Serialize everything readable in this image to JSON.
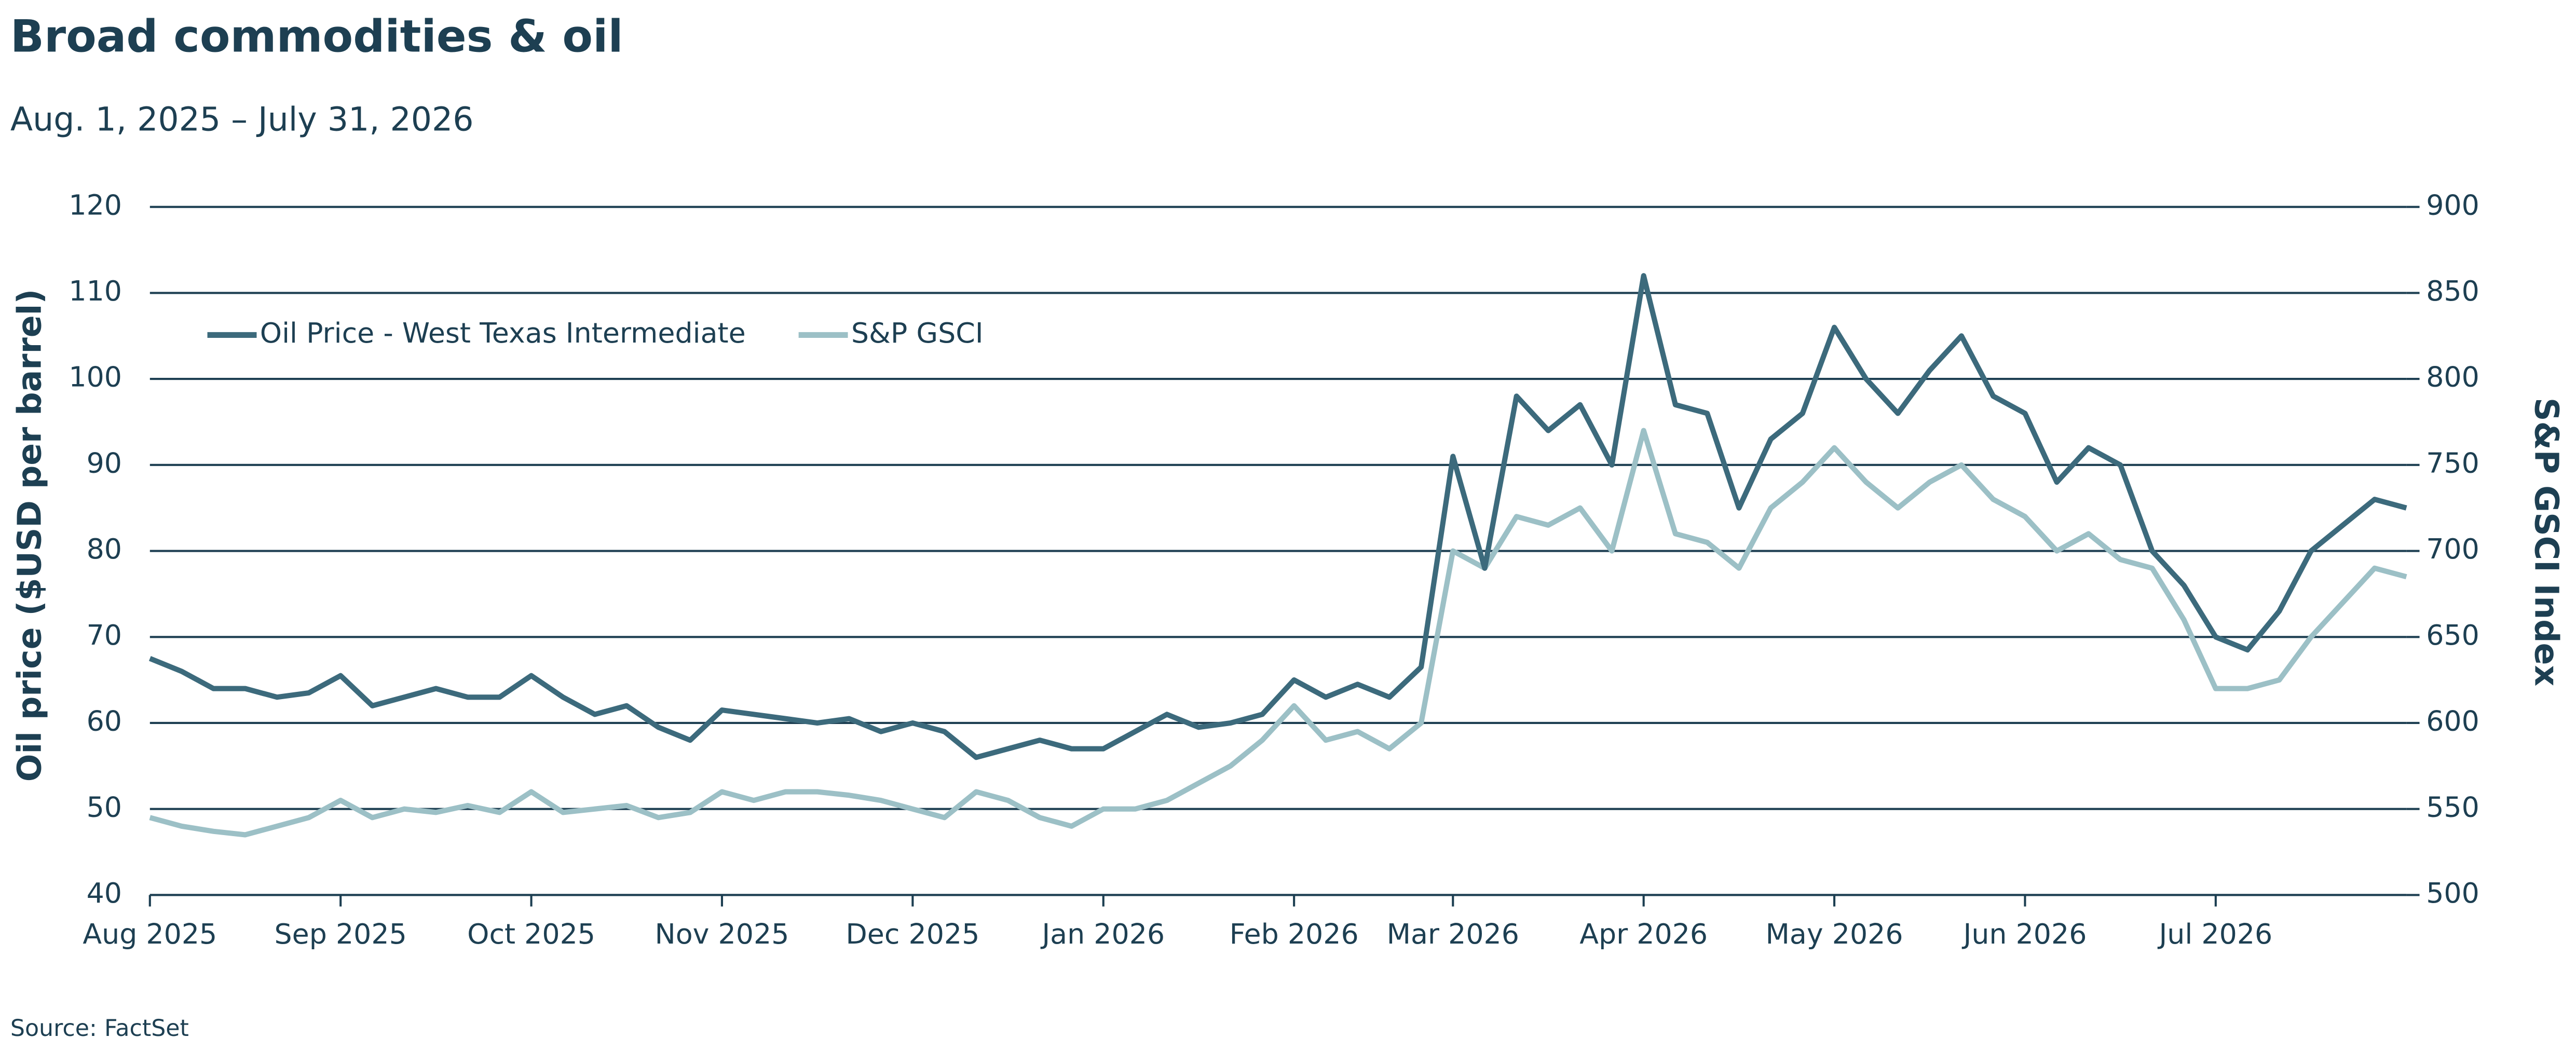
{
  "chart_data": {
    "type": "line",
    "title": "Broad commodities & oil",
    "subtitle": "Aug. 1, 2025 – July 31, 2026",
    "y_label": "Oil price ($USD per barrel)",
    "y2_label": "S&P GSCI Index",
    "source": "Source: FactSet",
    "legend": "upper left",
    "grid": true,
    "categories": [
      "Aug 2025",
      null,
      null,
      null,
      null,
      null,
      "Sep 2025",
      null,
      null,
      null,
      null,
      null,
      "Oct 2025",
      null,
      null,
      null,
      null,
      null,
      "Nov 2025",
      null,
      null,
      null,
      null,
      null,
      "Dec 2025",
      null,
      null,
      null,
      null,
      null,
      "Jan 2026",
      null,
      null,
      null,
      null,
      null,
      "Feb 2026",
      null,
      null,
      null,
      null,
      "Mar 2026",
      null,
      null,
      null,
      null,
      null,
      "Apr 2026",
      null,
      null,
      null,
      null,
      null,
      "May 2026",
      null,
      null,
      null,
      null,
      null,
      "Jun 2026",
      null,
      null,
      null,
      null,
      null,
      "Jul 2026",
      null,
      null,
      null,
      null,
      null,
      null
    ],
    "ylim": [
      40,
      120
    ],
    "yticks": [
      40,
      50,
      60,
      70,
      80,
      90,
      100,
      110,
      120
    ],
    "y2lim": [
      500,
      900
    ],
    "y2ticks": [
      500,
      550,
      600,
      650,
      700,
      750,
      800,
      850,
      900
    ],
    "series": [
      {
        "name": "Oil Price - West Texas Intermediate",
        "color": "#3c6a7c",
        "values": [
          67.5,
          66,
          64,
          64,
          63,
          63.5,
          65.5,
          62,
          63,
          64,
          63,
          63,
          65.5,
          63,
          61,
          62,
          59.5,
          58,
          61.5,
          61,
          60.5,
          60,
          60.5,
          59,
          60,
          59,
          56,
          57,
          58,
          57,
          57,
          59,
          61,
          59.5,
          60,
          61,
          65,
          63,
          64.5,
          63,
          66.5,
          91,
          78,
          98,
          94,
          97,
          90,
          112,
          97,
          96,
          85,
          93,
          96,
          106,
          100,
          96,
          101,
          105,
          98,
          96,
          88,
          92,
          90,
          80,
          76,
          70,
          68.5,
          73,
          80,
          83,
          86,
          85
        ]
      },
      {
        "name": "S&P GSCI",
        "color": "#9cc0c6",
        "axis": "y2",
        "values": [
          545,
          540,
          537,
          535,
          540,
          545,
          555,
          545,
          550,
          548,
          552,
          548,
          560,
          548,
          550,
          552,
          545,
          548,
          560,
          555,
          560,
          560,
          558,
          555,
          550,
          545,
          560,
          555,
          545,
          540,
          550,
          550,
          555,
          565,
          575,
          590,
          610,
          590,
          595,
          585,
          600,
          700,
          690,
          720,
          715,
          725,
          700,
          770,
          710,
          705,
          690,
          725,
          740,
          760,
          740,
          725,
          740,
          750,
          730,
          720,
          700,
          710,
          695,
          690,
          660,
          620,
          620,
          625,
          650,
          670,
          690,
          685
        ]
      }
    ]
  }
}
